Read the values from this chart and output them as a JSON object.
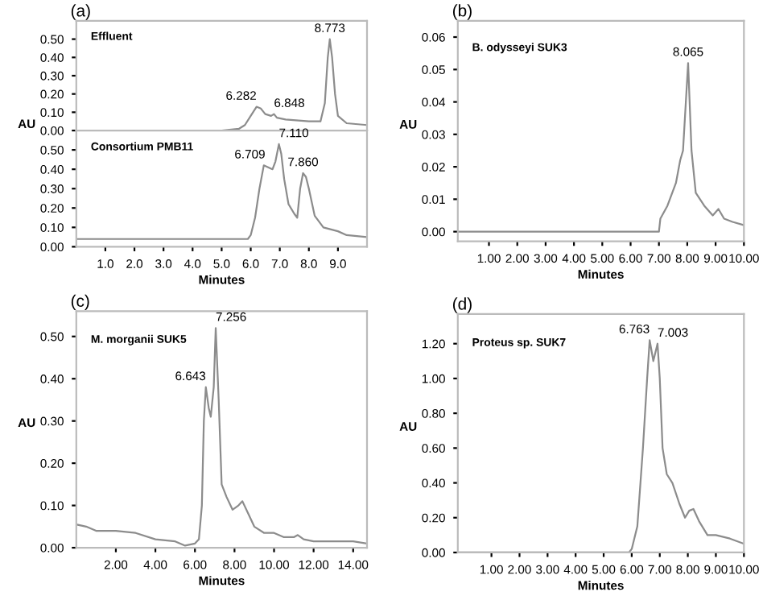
{
  "chart_data": [
    {
      "type": "line",
      "title": "(a)",
      "xlim": [
        0,
        10
      ],
      "ylim": [
        0,
        0.6
      ],
      "tick_labels": "y",
      "grid": false,
      "marker": "none",
      "line_style": "solid",
      "yticks": [
        {
          "value": 0,
          "label": "0.00"
        },
        {
          "value": 0.1,
          "label": "0.10"
        },
        {
          "value": 0.2,
          "label": "0.20"
        },
        {
          "value": 0.3,
          "label": "0.30"
        },
        {
          "value": 0.4,
          "label": "0.40"
        },
        {
          "value": 0.5,
          "label": "0.50"
        }
      ],
      "series": [
        {
          "color": "#8c8c8c",
          "x": [
            0,
            5.0,
            5.6,
            5.8,
            6.0,
            6.2,
            6.35,
            6.5,
            6.7,
            6.8,
            6.9,
            7.2,
            8.0,
            8.4,
            8.55,
            8.65,
            8.72,
            8.8,
            8.9,
            9.0,
            9.3,
            10.0
          ],
          "values": [
            0,
            0,
            0.01,
            0.03,
            0.08,
            0.13,
            0.12,
            0.09,
            0.08,
            0.09,
            0.07,
            0.06,
            0.05,
            0.05,
            0.15,
            0.4,
            0.5,
            0.4,
            0.2,
            0.08,
            0.04,
            0.03
          ]
        }
      ],
      "annotations": [
        "Effluent",
        {
          "text": "6.282",
          "x": 6.2,
          "y": 0.13
        },
        {
          "text": "6.848",
          "x": 6.8,
          "y": 0.09
        },
        {
          "text": "8.773",
          "x": 8.72,
          "y": 0.5
        }
      ]
    },
    {
      "type": "line",
      "xlabel": "Minutes",
      "ylabel": "AU",
      "xlim": [
        0,
        10
      ],
      "ylim": [
        0,
        0.6
      ],
      "grid": false,
      "marker": "none",
      "line_style": "solid",
      "xticks": [
        {
          "value": 1,
          "label": "1.0"
        },
        {
          "value": 2,
          "label": "2.0"
        },
        {
          "value": 3,
          "label": "3.0"
        },
        {
          "value": 4,
          "label": "4.0"
        },
        {
          "value": 5,
          "label": "5.0"
        },
        {
          "value": 6,
          "label": "6.0"
        },
        {
          "value": 7,
          "label": "7.0"
        },
        {
          "value": 8,
          "label": "8.0"
        },
        {
          "value": 9,
          "label": "9.0"
        }
      ],
      "yticks": [
        {
          "value": 0,
          "label": "0.00"
        },
        {
          "value": 0.1,
          "label": "0.10"
        },
        {
          "value": 0.2,
          "label": "0.20"
        },
        {
          "value": 0.3,
          "label": "0.30"
        },
        {
          "value": 0.4,
          "label": "0.40"
        },
        {
          "value": 0.5,
          "label": "0.50"
        }
      ],
      "series": [
        {
          "color": "#8c8c8c",
          "x": [
            0,
            5.9,
            6.0,
            6.15,
            6.3,
            6.45,
            6.6,
            6.75,
            6.85,
            6.97,
            7.05,
            7.15,
            7.3,
            7.5,
            7.6,
            7.7,
            7.8,
            7.9,
            8.0,
            8.2,
            8.5,
            9.0,
            9.3,
            10.0
          ],
          "values": [
            0.04,
            0.04,
            0.06,
            0.15,
            0.3,
            0.42,
            0.41,
            0.4,
            0.44,
            0.53,
            0.48,
            0.35,
            0.22,
            0.17,
            0.15,
            0.3,
            0.38,
            0.36,
            0.3,
            0.16,
            0.1,
            0.08,
            0.06,
            0.05
          ]
        }
      ],
      "annotations": [
        "Consortium PMB11",
        {
          "text": "6.709",
          "x": 6.5,
          "y": 0.42
        },
        {
          "text": "7.110",
          "x": 6.97,
          "y": 0.53
        },
        {
          "text": "7.860",
          "x": 7.8,
          "y": 0.38
        }
      ]
    },
    {
      "type": "line",
      "title": "(b)",
      "xlabel": "Minutes",
      "ylabel": "AU",
      "xlim": [
        -0.1,
        10
      ],
      "ylim": [
        -0.003,
        0.065
      ],
      "grid": false,
      "marker": "none",
      "line_style": "solid",
      "xticks": [
        {
          "value": 1,
          "label": "1.00"
        },
        {
          "value": 2,
          "label": "2.00"
        },
        {
          "value": 3,
          "label": "3.00"
        },
        {
          "value": 4,
          "label": "4.00"
        },
        {
          "value": 5,
          "label": "5.00"
        },
        {
          "value": 6,
          "label": "6.00"
        },
        {
          "value": 7,
          "label": "7.00"
        },
        {
          "value": 8,
          "label": "8.00"
        },
        {
          "value": 9,
          "label": "9.00"
        },
        {
          "value": 10,
          "label": "10.00"
        }
      ],
      "yticks": [
        {
          "value": 0,
          "label": "0.00"
        },
        {
          "value": 0.01,
          "label": "0.01"
        },
        {
          "value": 0.02,
          "label": "0.02"
        },
        {
          "value": 0.03,
          "label": "0.03"
        },
        {
          "value": 0.04,
          "label": "0.04"
        },
        {
          "value": 0.05,
          "label": "0.05"
        },
        {
          "value": 0.06,
          "label": "0.06"
        }
      ],
      "series": [
        {
          "color": "#8c8c8c",
          "x": [
            -0.1,
            7.0,
            7.05,
            7.3,
            7.6,
            7.75,
            7.85,
            7.95,
            8.03,
            8.15,
            8.3,
            8.6,
            8.9,
            9.1,
            9.3,
            9.6,
            10.0
          ],
          "values": [
            0,
            0,
            0.004,
            0.008,
            0.015,
            0.022,
            0.025,
            0.04,
            0.052,
            0.025,
            0.012,
            0.008,
            0.005,
            0.007,
            0.004,
            0.003,
            0.002
          ]
        }
      ],
      "annotations": [
        "B. odysseyi SUK3",
        {
          "text": "8.065",
          "x": 8.03,
          "y": 0.052
        }
      ]
    },
    {
      "type": "line",
      "title": "(c)",
      "xlabel": "Minutes",
      "ylabel": "AU",
      "xlim": [
        0,
        14.7
      ],
      "ylim": [
        0,
        0.56
      ],
      "grid": false,
      "marker": "none",
      "line_style": "solid",
      "xticks": [
        {
          "value": 2,
          "label": "2.00"
        },
        {
          "value": 4,
          "label": "4.00"
        },
        {
          "value": 6,
          "label": "6.00"
        },
        {
          "value": 8,
          "label": "8.00"
        },
        {
          "value": 10,
          "label": "10.00"
        },
        {
          "value": 12,
          "label": "12.00"
        },
        {
          "value": 14,
          "label": "14.00"
        }
      ],
      "yticks": [
        {
          "value": 0,
          "label": "0.00"
        },
        {
          "value": 0.1,
          "label": "0.10"
        },
        {
          "value": 0.2,
          "label": "0.20"
        },
        {
          "value": 0.3,
          "label": "0.30"
        },
        {
          "value": 0.4,
          "label": "0.40"
        },
        {
          "value": 0.5,
          "label": "0.50"
        }
      ],
      "series": [
        {
          "color": "#8c8c8c",
          "x": [
            0,
            0.5,
            1.0,
            2.0,
            3.0,
            4.0,
            5.0,
            5.5,
            6.0,
            6.2,
            6.35,
            6.45,
            6.55,
            6.7,
            6.8,
            6.95,
            7.05,
            7.2,
            7.35,
            7.6,
            7.9,
            8.2,
            8.4,
            8.7,
            9.0,
            9.5,
            10.0,
            10.5,
            11.0,
            11.2,
            11.5,
            12.0,
            13.0,
            14.0,
            14.7
          ],
          "values": [
            0.055,
            0.05,
            0.04,
            0.04,
            0.035,
            0.02,
            0.015,
            0.005,
            0.01,
            0.02,
            0.1,
            0.3,
            0.38,
            0.33,
            0.31,
            0.38,
            0.52,
            0.35,
            0.15,
            0.12,
            0.09,
            0.1,
            0.11,
            0.08,
            0.05,
            0.035,
            0.035,
            0.025,
            0.025,
            0.03,
            0.02,
            0.015,
            0.015,
            0.015,
            0.01
          ]
        }
      ],
      "annotations": [
        "M. morganii SUK5",
        {
          "text": "6.643",
          "x": 6.55,
          "y": 0.38
        },
        {
          "text": "7.256",
          "x": 7.05,
          "y": 0.52
        }
      ]
    },
    {
      "type": "line",
      "title": "(d)",
      "xlabel": "Minutes",
      "ylabel": "AU",
      "xlim": [
        -0.2,
        10
      ],
      "ylim": [
        0,
        1.37
      ],
      "grid": false,
      "marker": "none",
      "line_style": "solid",
      "xticks": [
        {
          "value": 1,
          "label": "1.00"
        },
        {
          "value": 2,
          "label": "2.00"
        },
        {
          "value": 3,
          "label": "3.00"
        },
        {
          "value": 4,
          "label": "4.00"
        },
        {
          "value": 5,
          "label": "5.00"
        },
        {
          "value": 6,
          "label": "6.00"
        },
        {
          "value": 7,
          "label": "7.00"
        },
        {
          "value": 8,
          "label": "8.00"
        },
        {
          "value": 9,
          "label": "9.00"
        },
        {
          "value": 10,
          "label": "10.00"
        }
      ],
      "yticks": [
        {
          "value": 0,
          "label": "0.00"
        },
        {
          "value": 0.2,
          "label": "0.20"
        },
        {
          "value": 0.4,
          "label": "0.40"
        },
        {
          "value": 0.6,
          "label": "0.60"
        },
        {
          "value": 0.8,
          "label": "0.80"
        },
        {
          "value": 1.0,
          "label": "1.00"
        },
        {
          "value": 1.2,
          "label": "1.20"
        }
      ],
      "series": [
        {
          "color": "#8c8c8c",
          "x": [
            -0.2,
            3.0,
            5.9,
            6.0,
            6.2,
            6.4,
            6.55,
            6.64,
            6.77,
            6.92,
            7.0,
            7.1,
            7.25,
            7.45,
            7.7,
            7.9,
            8.05,
            8.2,
            8.4,
            8.7,
            9.0,
            9.5,
            10.0
          ],
          "values": [
            0,
            0,
            0,
            0.02,
            0.15,
            0.6,
            1.0,
            1.22,
            1.1,
            1.2,
            1.0,
            0.6,
            0.45,
            0.4,
            0.28,
            0.2,
            0.24,
            0.25,
            0.18,
            0.1,
            0.1,
            0.08,
            0.05
          ]
        }
      ],
      "annotations": [
        "Proteus sp. SUK7",
        {
          "text": "6.763",
          "x": 6.64,
          "y": 1.22
        },
        {
          "text": "7.003",
          "x": 6.92,
          "y": 1.2
        }
      ]
    }
  ]
}
